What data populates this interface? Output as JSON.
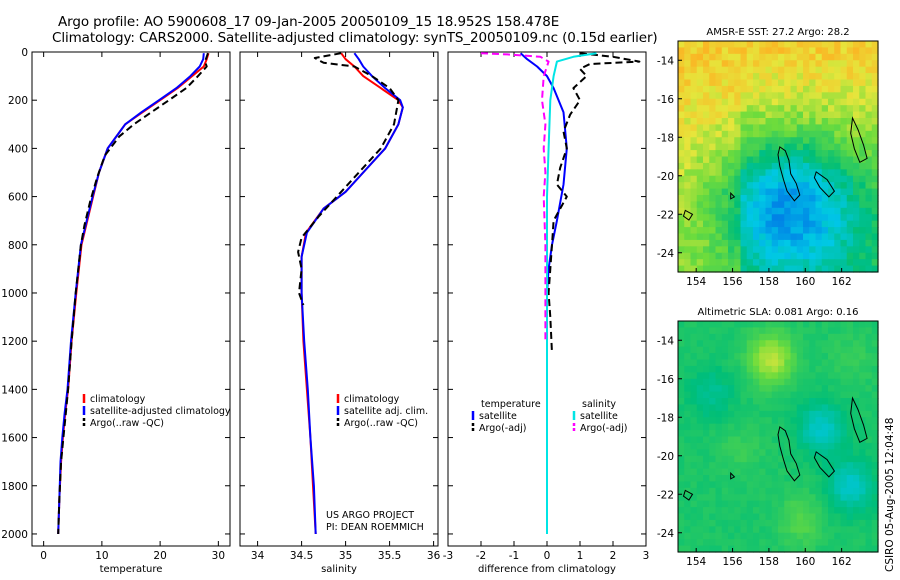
{
  "header": {
    "line1": "Argo profile: AO 5900608_17 09-Jan-2005 20050109_15 18.952S 158.478E",
    "line2": "Climatology: CARS2000. Satellite-adjusted climatology: synTS_20050109.nc (0.15d earlier)"
  },
  "side_stamp": "CSIRO 05-Aug-2005 12:04:48",
  "colors": {
    "climatology": "#ff0000",
    "satellite": "#0000ff",
    "argo": "#000000",
    "sat_salinity": "#00e5e5",
    "argo_salinity": "#ff00ff"
  },
  "chart_data": [
    {
      "type": "line",
      "xlabel": "temperature",
      "ylabel": "",
      "xlim": [
        -2,
        32
      ],
      "ylim": [
        2050,
        0
      ],
      "xticks": [
        0,
        10,
        20,
        30
      ],
      "yticks": [
        0,
        200,
        400,
        600,
        800,
        1000,
        1200,
        1400,
        1600,
        1800,
        2000
      ],
      "legend": [
        "climatology",
        "satellite-adjusted climatology",
        "Argo(..raw -QC)"
      ],
      "legend_position": "lower-right",
      "series": [
        {
          "name": "climatology",
          "style": "solid",
          "color": "#ff0000",
          "x": [
            28.3,
            28.0,
            27.5,
            25.5,
            23.0,
            20.0,
            17.0,
            14.0,
            11.0,
            9.5,
            8.5,
            7.5,
            6.5,
            5.6,
            4.8,
            4.2,
            3.7,
            3.3,
            3.0,
            2.7,
            2.5
          ],
          "y": [
            5,
            30,
            60,
            100,
            150,
            200,
            250,
            300,
            400,
            500,
            600,
            700,
            800,
            1000,
            1200,
            1400,
            1500,
            1600,
            1700,
            1850,
            2000
          ]
        },
        {
          "name": "satellite-adjusted climatology",
          "style": "solid",
          "color": "#0000ff",
          "x": [
            27.5,
            27.4,
            26.8,
            25.2,
            22.8,
            19.8,
            16.8,
            14.0,
            11.0,
            9.5,
            8.4,
            7.4,
            6.4,
            5.5,
            4.7,
            4.1,
            3.6,
            3.2,
            2.9,
            2.7,
            2.5
          ],
          "y": [
            5,
            30,
            60,
            100,
            150,
            200,
            250,
            300,
            400,
            500,
            600,
            700,
            800,
            1000,
            1200,
            1400,
            1500,
            1600,
            1700,
            1850,
            2000
          ]
        },
        {
          "name": "Argo(..raw -QC)",
          "style": "dashed",
          "color": "#000000",
          "x": [
            28.2,
            28.0,
            27.7,
            28.0,
            26.5,
            24.5,
            21.5,
            18.5,
            15.5,
            13.0,
            10.5,
            9.2,
            8.0,
            7.0,
            6.4,
            5.5,
            4.8,
            4.2,
            3.8,
            3.4,
            3.0,
            2.7,
            2.5
          ],
          "y": [
            5,
            20,
            40,
            60,
            100,
            150,
            200,
            250,
            300,
            350,
            430,
            520,
            620,
            720,
            800,
            1000,
            1200,
            1400,
            1500,
            1600,
            1700,
            1850,
            2000
          ]
        }
      ]
    },
    {
      "type": "line",
      "xlabel": "salinity",
      "ylabel": "",
      "xlim": [
        33.8,
        36.05
      ],
      "ylim": [
        2050,
        0
      ],
      "xticks": [
        34,
        34.5,
        35,
        35.5,
        36
      ],
      "yticks": [
        0,
        200,
        400,
        600,
        800,
        1000,
        1200,
        1400,
        1600,
        1800,
        2000
      ],
      "legend": [
        "climatology",
        "satellite adj. clim.",
        "Argo(..raw -QC)"
      ],
      "legend_position": "lower-right",
      "annotation": [
        "US ARGO PROJECT",
        "PI: DEAN ROEMMICH"
      ],
      "series": [
        {
          "name": "climatology",
          "style": "solid",
          "color": "#ff0000",
          "x": [
            34.95,
            35.0,
            35.1,
            35.2,
            35.4,
            35.6,
            35.65,
            35.6,
            35.45,
            35.2,
            35.0,
            34.75,
            34.55,
            34.5,
            34.5,
            34.52,
            34.56,
            34.6,
            34.63,
            34.66
          ],
          "y": [
            5,
            30,
            60,
            100,
            150,
            200,
            230,
            300,
            400,
            500,
            580,
            650,
            750,
            850,
            1000,
            1200,
            1400,
            1600,
            1800,
            2000
          ]
        },
        {
          "name": "satellite adj. clim.",
          "style": "solid",
          "color": "#0000ff",
          "x": [
            35.1,
            35.15,
            35.2,
            35.3,
            35.45,
            35.62,
            35.65,
            35.6,
            35.45,
            35.2,
            35.0,
            34.75,
            34.56,
            34.5,
            34.5,
            34.53,
            34.57,
            34.6,
            34.64,
            34.66
          ],
          "y": [
            5,
            30,
            60,
            100,
            150,
            200,
            230,
            300,
            400,
            500,
            580,
            650,
            750,
            850,
            1000,
            1200,
            1400,
            1600,
            1800,
            2000
          ]
        },
        {
          "name": "Argo(..raw -QC)",
          "style": "dashed",
          "color": "#000000",
          "x": [
            34.95,
            34.65,
            34.75,
            35.1,
            35.3,
            35.5,
            35.6,
            35.55,
            35.4,
            35.15,
            34.95,
            34.7,
            34.5,
            34.46,
            34.5,
            34.47,
            34.52
          ],
          "y": [
            5,
            25,
            45,
            60,
            100,
            150,
            200,
            300,
            400,
            500,
            580,
            680,
            770,
            830,
            900,
            1000,
            1050
          ]
        }
      ]
    },
    {
      "type": "line",
      "xlabel": "difference from climatology",
      "ylabel": "",
      "xlim": [
        -3,
        3
      ],
      "ylim": [
        2050,
        0
      ],
      "xticks": [
        -3,
        -2,
        -1,
        0,
        1,
        2,
        3
      ],
      "yticks": [
        0,
        200,
        400,
        600,
        800,
        1000,
        1200,
        1400,
        1600,
        1800,
        2000
      ],
      "legend_left": [
        "temperature",
        "satellite",
        "Argo(-adj)"
      ],
      "legend_right": [
        "salinity",
        "satellite",
        "Argo(-adj)"
      ],
      "legend_position": "lower",
      "series": [
        {
          "name": "temperature satellite",
          "style": "solid",
          "color": "#0000ff",
          "x": [
            -0.8,
            -0.6,
            -0.3,
            0.0,
            0.2,
            0.5,
            0.6,
            0.5,
            0.3,
            0.15,
            0.05,
            0.0,
            0.0,
            0.0,
            0.0
          ],
          "y": [
            5,
            30,
            60,
            100,
            150,
            250,
            400,
            550,
            700,
            800,
            900,
            1000,
            1200,
            1600,
            2000
          ]
        },
        {
          "name": "temperature Argo(-adj)",
          "style": "dashed",
          "color": "#000000",
          "x": [
            1.0,
            2.0,
            2.8,
            1.3,
            1.0,
            1.2,
            0.8,
            1.0,
            0.7,
            0.5,
            0.6,
            0.4,
            0.3,
            0.6,
            0.2,
            0.15,
            0.1,
            0.05,
            0.1,
            0.15
          ],
          "y": [
            5,
            20,
            40,
            50,
            70,
            100,
            150,
            200,
            260,
            330,
            400,
            480,
            550,
            600,
            700,
            800,
            900,
            1000,
            1100,
            1250
          ]
        },
        {
          "name": "salinity satellite",
          "style": "solid",
          "color": "#00e5e5",
          "x": [
            1.5,
            0.8,
            0.3,
            0.2,
            0.1,
            0.05,
            0.0,
            0.0,
            0.0,
            0.0
          ],
          "y": [
            5,
            20,
            40,
            100,
            200,
            400,
            600,
            1000,
            1500,
            2000
          ]
        },
        {
          "name": "salinity Argo(-adj)",
          "style": "dashed",
          "color": "#ff00ff",
          "x": [
            -2.0,
            -1.2,
            -0.2,
            0.05,
            -0.1,
            -0.15,
            -0.05,
            -0.1,
            -0.05,
            -0.1,
            -0.05,
            -0.05,
            -0.05
          ],
          "y": [
            5,
            10,
            20,
            40,
            100,
            200,
            300,
            400,
            500,
            600,
            800,
            1000,
            1200
          ]
        }
      ]
    },
    {
      "type": "heatmap",
      "title": "AMSR-E SST: 27.2 Argo: 28.2",
      "xlim": [
        153,
        164
      ],
      "ylim": [
        -25,
        -13
      ],
      "xticks": [
        154,
        156,
        158,
        160,
        162
      ],
      "yticks": [
        -14,
        -16,
        -18,
        -20,
        -22,
        -24
      ]
    },
    {
      "type": "heatmap",
      "title": "Altimetric SLA: 0.081 Argo: 0.16",
      "xlim": [
        153,
        164
      ],
      "ylim": [
        -25,
        -13
      ],
      "xticks": [
        154,
        156,
        158,
        160,
        162
      ],
      "yticks": [
        -14,
        -16,
        -18,
        -20,
        -22,
        -24
      ]
    }
  ]
}
